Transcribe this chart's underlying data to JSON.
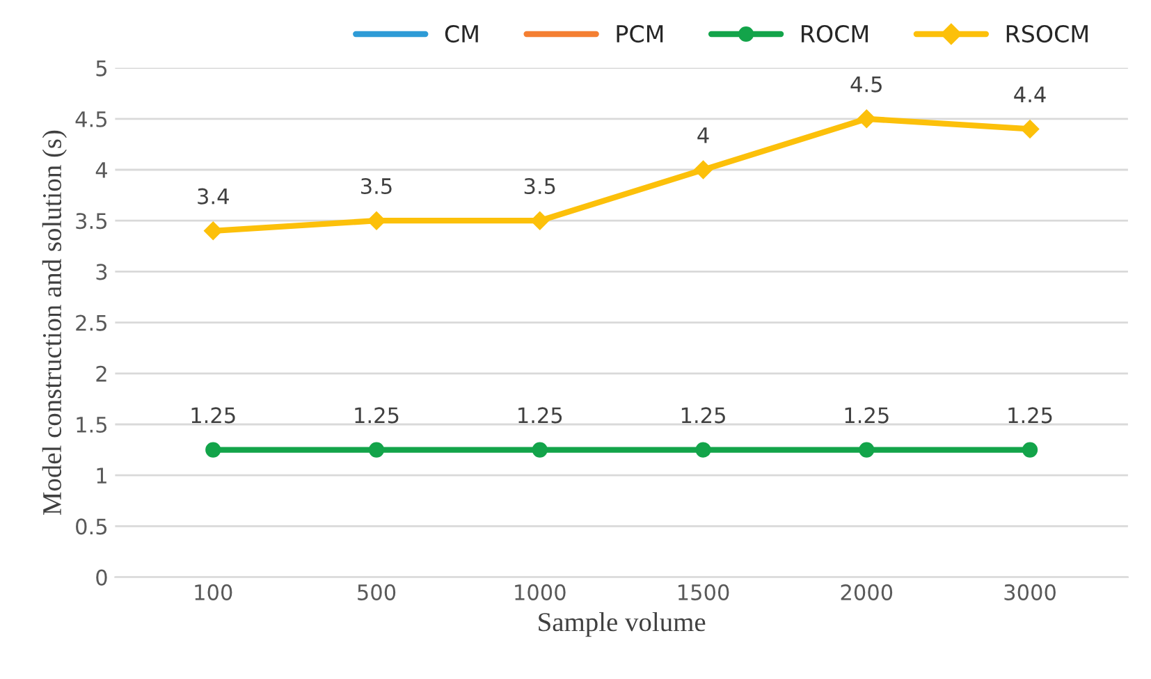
{
  "chart_data": {
    "type": "line",
    "xlabel": "Sample volume",
    "ylabel": "Model construction and solution (s)",
    "categories": [
      "100",
      "500",
      "1000",
      "1500",
      "2000",
      "3000"
    ],
    "series": [
      {
        "name": "CM",
        "color": "#2e9bd6",
        "marker": "none",
        "values": [
          null,
          null,
          null,
          null,
          null,
          null
        ]
      },
      {
        "name": "PCM",
        "color": "#f47f32",
        "marker": "none",
        "values": [
          null,
          null,
          null,
          null,
          null,
          null
        ]
      },
      {
        "name": "ROCM",
        "color": "#13a44a",
        "marker": "circle",
        "values": [
          1.25,
          1.25,
          1.25,
          1.25,
          1.25,
          1.25
        ]
      },
      {
        "name": "RSOCM",
        "color": "#fcc00a",
        "marker": "diamond",
        "values": [
          3.4,
          3.5,
          3.5,
          4,
          4.5,
          4.4
        ]
      }
    ],
    "ylim": [
      0,
      5
    ],
    "yticks": [
      0,
      0.5,
      1,
      1.5,
      2,
      2.5,
      3,
      3.5,
      4,
      4.5,
      5
    ],
    "grid": "y",
    "legend": "top",
    "data_labels": true
  }
}
